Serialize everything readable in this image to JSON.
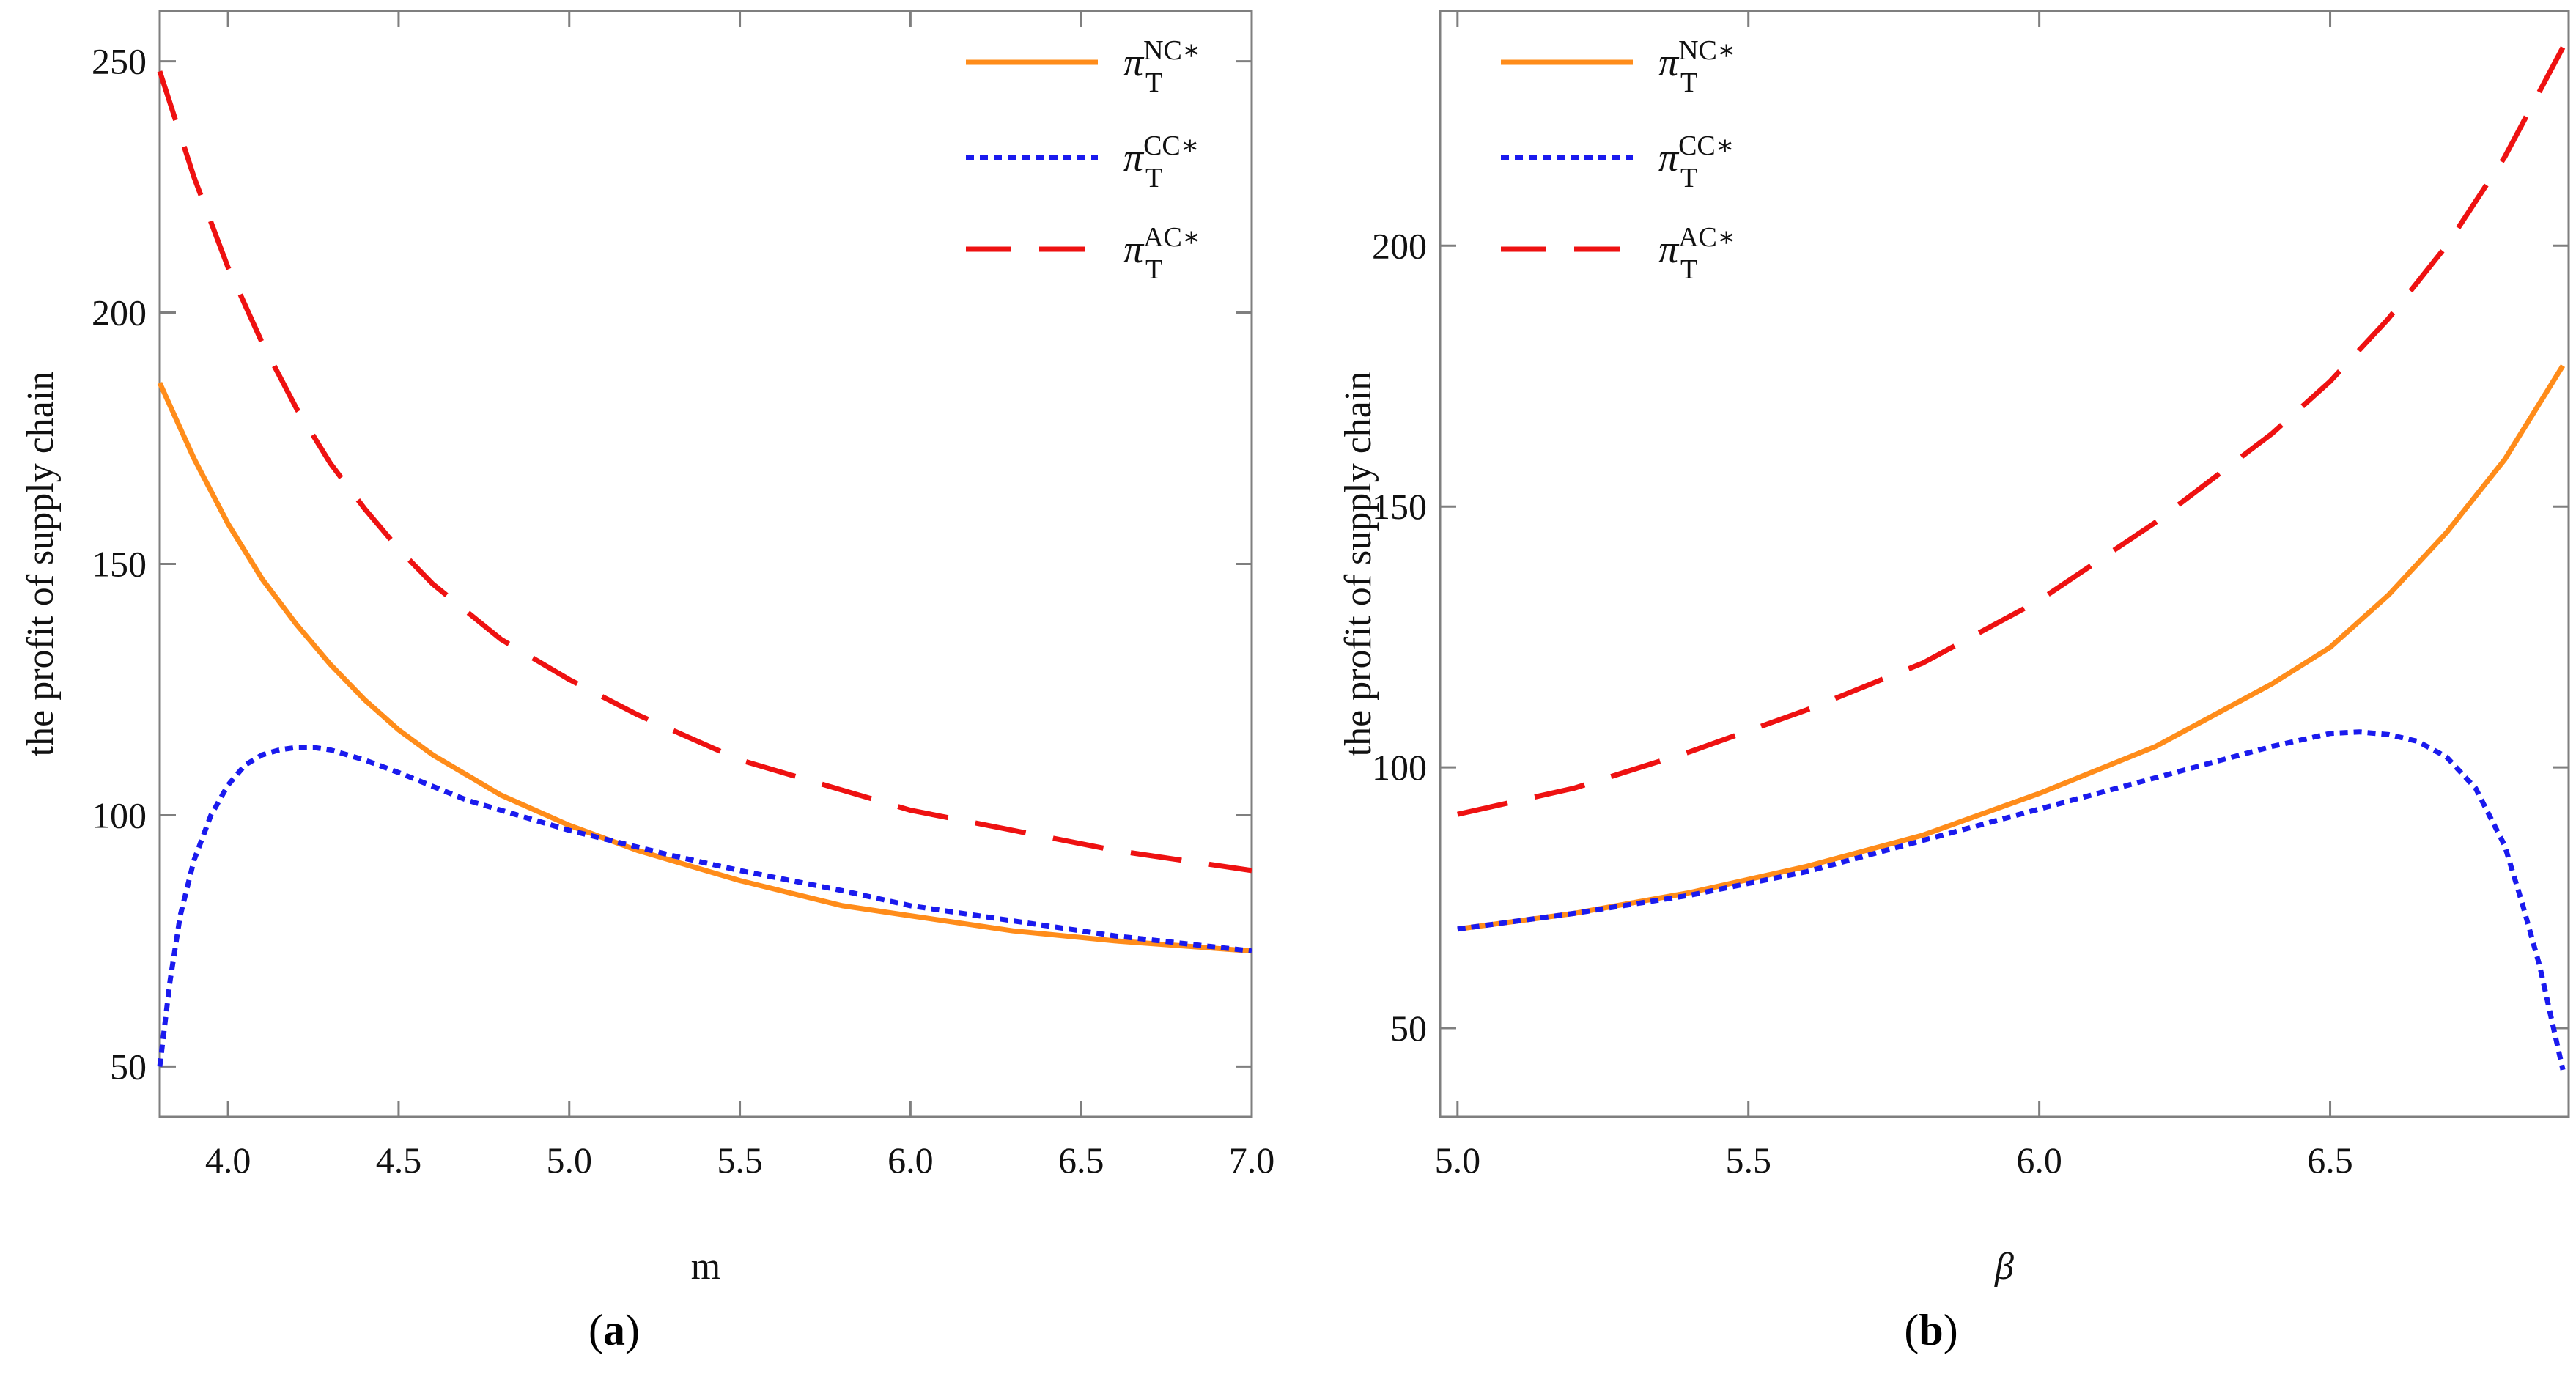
{
  "figure": {
    "panels": [
      "a",
      "b"
    ]
  },
  "chart_data": [
    {
      "type": "line",
      "panel": "a",
      "caption": "a",
      "title": "",
      "xlabel": "m",
      "ylabel": "the profit of supply chain",
      "xlim": [
        3.8,
        7.0
      ],
      "ylim": [
        40,
        260
      ],
      "xticks": [
        4.0,
        4.5,
        5.0,
        5.5,
        6.0,
        6.5,
        7.0
      ],
      "xtick_labels": [
        "4.0",
        "4.5",
        "5.0",
        "5.5",
        "6.0",
        "6.5",
        "7.0"
      ],
      "yticks": [
        50,
        100,
        150,
        200,
        250
      ],
      "ytick_labels": [
        "50",
        "100",
        "150",
        "200",
        "250"
      ],
      "legend_position": "top-right",
      "series": [
        {
          "name": "NC",
          "legend": {
            "symbol": "π",
            "sub": "T",
            "sup": "NC∗"
          },
          "color": "#ff8c1a",
          "style": "solid",
          "x": [
            3.8,
            3.9,
            4.0,
            4.1,
            4.2,
            4.3,
            4.4,
            4.5,
            4.6,
            4.8,
            5.0,
            5.2,
            5.5,
            5.8,
            6.0,
            6.3,
            6.6,
            7.0
          ],
          "y": [
            186,
            171,
            158,
            147,
            138,
            130,
            123,
            117,
            112,
            104,
            98,
            93,
            87,
            82,
            80,
            77,
            75,
            73
          ]
        },
        {
          "name": "CC",
          "legend": {
            "symbol": "π",
            "sub": "T",
            "sup": "CC∗"
          },
          "color": "#1a1aee",
          "style": "dotted",
          "x": [
            3.8,
            3.83,
            3.86,
            3.9,
            3.95,
            4.0,
            4.05,
            4.1,
            4.15,
            4.2,
            4.25,
            4.3,
            4.4,
            4.5,
            4.7,
            5.0,
            5.3,
            5.5,
            5.8,
            6.0,
            6.3,
            6.6,
            7.0
          ],
          "y": [
            50,
            67,
            80,
            91,
            100,
            106,
            110,
            112,
            113,
            113.5,
            113.5,
            113,
            111,
            108.5,
            103,
            97,
            92,
            89,
            85,
            82,
            79,
            76,
            73
          ]
        },
        {
          "name": "AC",
          "legend": {
            "symbol": "π",
            "sub": "T",
            "sup": "AC∗"
          },
          "color": "#ee1111",
          "style": "dashed",
          "x": [
            3.8,
            3.9,
            4.0,
            4.1,
            4.2,
            4.3,
            4.4,
            4.5,
            4.6,
            4.8,
            5.0,
            5.2,
            5.5,
            5.8,
            6.0,
            6.3,
            6.6,
            7.0
          ],
          "y": [
            248,
            227,
            209,
            194,
            181,
            170,
            161,
            153,
            146,
            135,
            127,
            120,
            111,
            105,
            101,
            97,
            93,
            89
          ]
        }
      ]
    },
    {
      "type": "line",
      "panel": "b",
      "caption": "b",
      "title": "",
      "xlabel": "β",
      "ylabel": "the profit of supply chain",
      "xlim": [
        4.97,
        6.91
      ],
      "ylim": [
        33,
        245
      ],
      "xticks": [
        5.0,
        5.5,
        6.0,
        6.5
      ],
      "xtick_labels": [
        "5.0",
        "5.5",
        "6.0",
        "6.5"
      ],
      "yticks": [
        50,
        100,
        150,
        200
      ],
      "ytick_labels": [
        "50",
        "100",
        "150",
        "200"
      ],
      "legend_position": "top-left",
      "series": [
        {
          "name": "NC",
          "legend": {
            "symbol": "π",
            "sub": "T",
            "sup": "NC∗"
          },
          "color": "#ff8c1a",
          "style": "solid",
          "x": [
            5.0,
            5.2,
            5.4,
            5.6,
            5.8,
            6.0,
            6.2,
            6.4,
            6.5,
            6.6,
            6.7,
            6.8,
            6.9
          ],
          "y": [
            69,
            72,
            76,
            81,
            87,
            95,
            104,
            116,
            123,
            133,
            145,
            159,
            177
          ]
        },
        {
          "name": "CC",
          "legend": {
            "symbol": "π",
            "sub": "T",
            "sup": "CC∗"
          },
          "color": "#1a1aee",
          "style": "dotted",
          "x": [
            5.0,
            5.2,
            5.4,
            5.6,
            5.8,
            6.0,
            6.2,
            6.4,
            6.5,
            6.55,
            6.6,
            6.65,
            6.7,
            6.75,
            6.8,
            6.83,
            6.86,
            6.88,
            6.9
          ],
          "y": [
            69,
            72,
            75.5,
            80,
            86,
            92,
            98,
            104,
            106.5,
            106.8,
            106.3,
            105,
            102,
            96,
            85,
            74,
            62,
            52,
            42
          ]
        },
        {
          "name": "AC",
          "legend": {
            "symbol": "π",
            "sub": "T",
            "sup": "AC∗"
          },
          "color": "#ee1111",
          "style": "dashed",
          "x": [
            5.0,
            5.2,
            5.4,
            5.6,
            5.8,
            6.0,
            6.2,
            6.4,
            6.5,
            6.6,
            6.7,
            6.8,
            6.9
          ],
          "y": [
            91,
            96,
            103,
            111,
            120,
            132,
            147,
            164,
            174,
            186,
            200,
            217,
            238
          ]
        }
      ]
    }
  ]
}
